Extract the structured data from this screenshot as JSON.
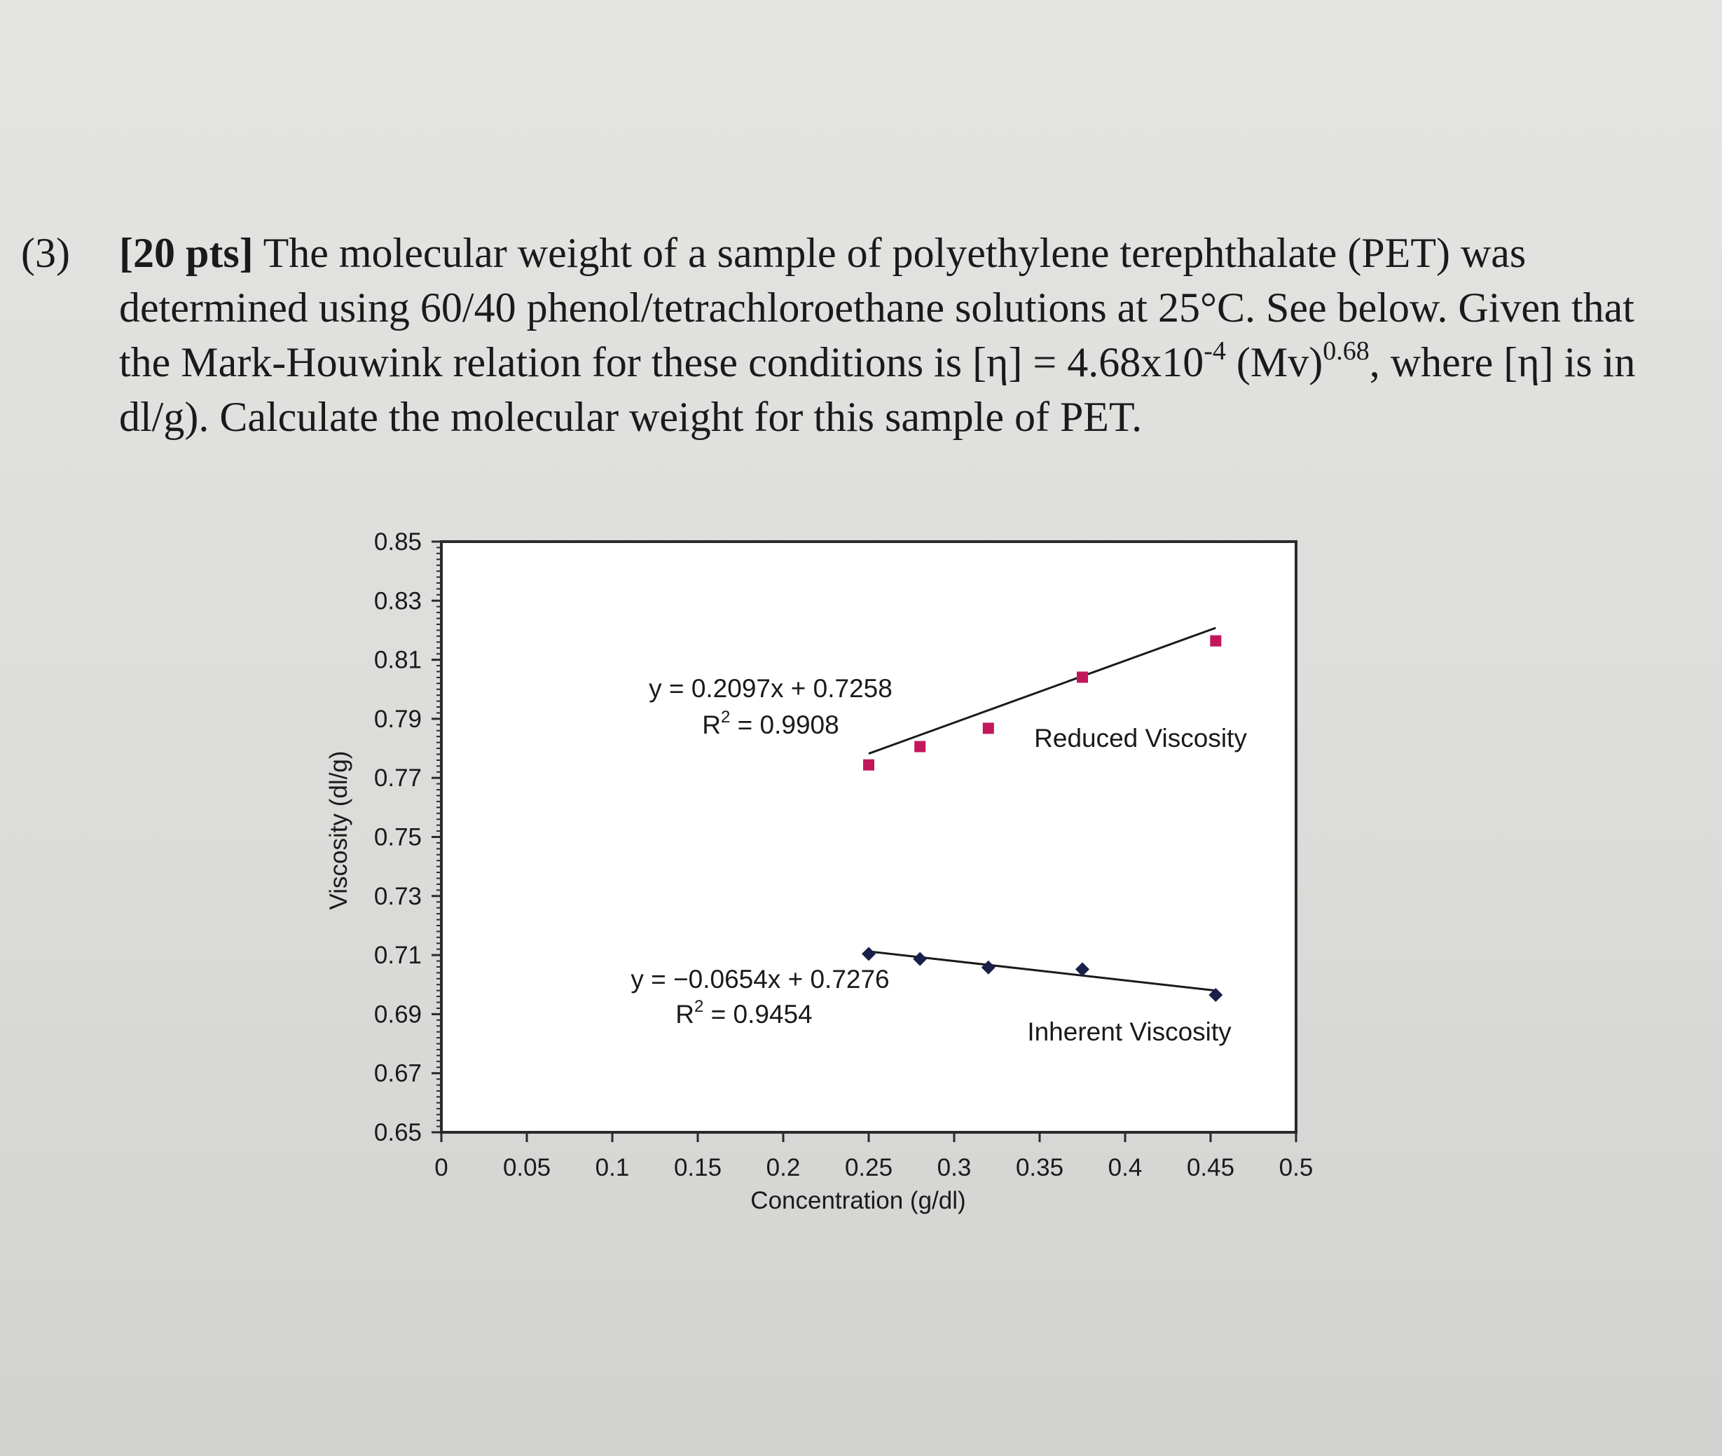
{
  "problem": {
    "number": "(3)",
    "points": "[20 pts]",
    "text_1": " The molecular weight of a sample of polyethylene terephthalate (PET) was determined using 60/40 phenol/tetrachloroethane solutions at 25°C. See below. Given that the Mark-Houwink relation for these conditions is [η] = 4.68x10",
    "exp_1": "-4",
    "text_2": " (Mv)",
    "exp_2": "0.68",
    "text_3": ", where [η] is in dl/g). Calculate the molecular weight for this sample of PET."
  },
  "chart_data": {
    "type": "scatter",
    "xlabel": "Concentration (g/dl)",
    "ylabel": "Viscosity (dl/g)",
    "xlim": [
      0,
      0.5
    ],
    "ylim": [
      0.65,
      0.85
    ],
    "x_ticks": [
      "0",
      "0.05",
      "0.1",
      "0.15",
      "0.2",
      "0.25",
      "0.3",
      "0.35",
      "0.4",
      "0.45",
      "0.5"
    ],
    "y_ticks": [
      "0.65",
      "0.67",
      "0.69",
      "0.71",
      "0.73",
      "0.75",
      "0.77",
      "0.79",
      "0.81",
      "0.83",
      "0.85"
    ],
    "grid": false,
    "series": [
      {
        "name": "Reduced Viscosity",
        "marker": "square",
        "color": "#c2185b",
        "x": [
          0.25,
          0.28,
          0.32,
          0.375,
          0.453
        ],
        "y": [
          0.7744,
          0.7806,
          0.7868,
          0.8041,
          0.8164
        ],
        "trendline": {
          "slope": 0.2097,
          "intercept": 0.7258
        },
        "equation": "y = 0.2097x + 0.7258",
        "r2_label": "R",
        "r2_sup": "2",
        "r2_value": " = 0.9908"
      },
      {
        "name": "Inherent Viscosity",
        "marker": "diamond",
        "color": "#1a1f4a",
        "x": [
          0.25,
          0.28,
          0.32,
          0.375,
          0.453
        ],
        "y": [
          0.7104,
          0.7087,
          0.7058,
          0.7052,
          0.6965
        ],
        "trendline": {
          "slope": -0.0654,
          "intercept": 0.7276
        },
        "equation": "y = −0.0654x + 0.7276",
        "r2_label": "R",
        "r2_sup": "2",
        "r2_value": " = 0.9454"
      }
    ]
  }
}
